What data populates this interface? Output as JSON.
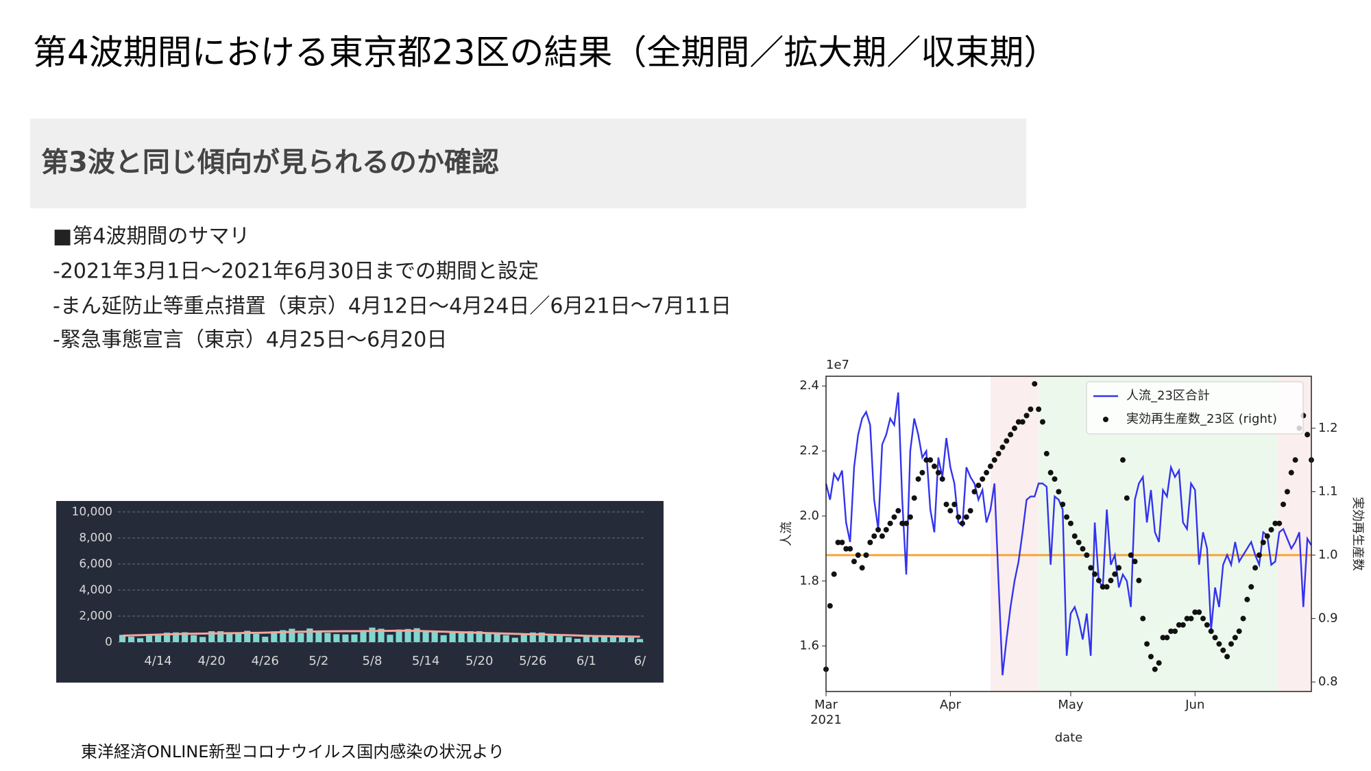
{
  "title": "第4波期間における東京都23区の結果（全期間／拡大期／収束期）",
  "subtitle": "第3波と同じ傾向が見られるのか確認",
  "summary": [
    "■第4波期間のサマリ",
    "-2021年3月1日〜2021年6月30日までの期間と設定",
    "-まん延防止等重点措置（東京）4月12日〜4月24日／6月21日〜7月11日",
    "-緊急事態宣言（東京）4月25日〜6月20日"
  ],
  "source": "東洋経済ONLINE新型コロナウイルス国内感染の状況より",
  "chart_data": [
    {
      "type": "bar",
      "background": "#262b3a",
      "grid": true,
      "categories": [
        null,
        null,
        null,
        null,
        "4/14",
        null,
        null,
        null,
        null,
        null,
        "4/20",
        null,
        null,
        null,
        null,
        null,
        "4/26",
        null,
        null,
        null,
        null,
        null,
        "5/2",
        null,
        null,
        null,
        null,
        null,
        "5/8",
        null,
        null,
        null,
        null,
        null,
        "5/14",
        null,
        null,
        null,
        null,
        null,
        "5/20",
        null,
        null,
        null,
        null,
        null,
        "5/26",
        null,
        null,
        null,
        null,
        null,
        "6/1",
        null,
        null,
        null,
        null,
        null,
        "6/"
      ],
      "series": [
        {
          "type": "bar",
          "color": "#7fd8cf",
          "values": [
            560,
            420,
            300,
            510,
            590,
            730,
            750,
            760,
            540,
            400,
            840,
            840,
            760,
            760,
            870,
            630,
            420,
            830,
            920,
            1030,
            700,
            1050,
            880,
            710,
            620,
            590,
            590,
            910,
            1120,
            1030,
            570,
            970,
            1010,
            1070,
            850,
            770,
            540,
            730,
            730,
            840,
            840,
            710,
            650,
            540,
            340,
            580,
            740,
            740,
            610,
            540,
            380,
            260,
            470,
            490,
            510,
            470,
            470,
            350,
            240
          ]
        },
        {
          "type": "line",
          "color": "#f2a7a0",
          "values": [
            500,
            520,
            540,
            560,
            580,
            600,
            620,
            640,
            650,
            660,
            670,
            680,
            690,
            700,
            710,
            720,
            730,
            750,
            770,
            790,
            800,
            810,
            820,
            830,
            835,
            840,
            845,
            850,
            855,
            860,
            870,
            880,
            875,
            860,
            840,
            820,
            800,
            780,
            760,
            740,
            720,
            700,
            680,
            660,
            640,
            620,
            600,
            590,
            570,
            550,
            530,
            510,
            490,
            470,
            460,
            450,
            440,
            430,
            420
          ]
        }
      ],
      "ylim": [
        0,
        10000
      ],
      "yticks": [
        0,
        {
          "value": 2000,
          "label": "2,000"
        },
        {
          "value": 4000,
          "label": "4,000"
        },
        {
          "value": 6000,
          "label": "6,000"
        },
        {
          "value": 8000,
          "label": "8,000"
        },
        {
          "value": 10000,
          "label": "10,000"
        }
      ]
    },
    {
      "type": "line",
      "offset_label": "1e7",
      "ylabel": "人流",
      "y2label": "実効再生産数",
      "xlabel": "date",
      "x_year_label": "2021",
      "legend": "upper right",
      "x": [
        0,
        1,
        2,
        3,
        4,
        5,
        6,
        7,
        8,
        9,
        10,
        11,
        12,
        13,
        14,
        15,
        16,
        17,
        18,
        19,
        20,
        21,
        22,
        23,
        24,
        25,
        26,
        27,
        28,
        29,
        30,
        31,
        32,
        33,
        34,
        35,
        36,
        37,
        38,
        39,
        40,
        41,
        42,
        43,
        44,
        45,
        46,
        47,
        48,
        49,
        50,
        51,
        52,
        53,
        54,
        55,
        56,
        57,
        58,
        59,
        60,
        61,
        62,
        63,
        64,
        65,
        66,
        67,
        68,
        69,
        70,
        71,
        72,
        73,
        74,
        75,
        76,
        77,
        78,
        79,
        80,
        81,
        82,
        83,
        84,
        85,
        86,
        87,
        88,
        89,
        90,
        91,
        92,
        93,
        94,
        95,
        96,
        97,
        98,
        99,
        100,
        101,
        102,
        103,
        104,
        105,
        106,
        107,
        108,
        109,
        110,
        111,
        112,
        113,
        114,
        115,
        116,
        117,
        118,
        119,
        120,
        121
      ],
      "xlim": [
        0,
        121
      ],
      "xticks": [
        {
          "value": 0,
          "label": "Mar"
        },
        {
          "value": 31,
          "label": "Apr"
        },
        {
          "value": 61,
          "label": "May"
        },
        {
          "value": 92,
          "label": "Jun"
        }
      ],
      "ylim": [
        1.46,
        2.43
      ],
      "yticks": [
        1.6,
        1.8,
        {
          "value": 2,
          "label": "2.0"
        },
        2.2,
        2.4
      ],
      "y2lim": [
        0.785,
        1.282
      ],
      "y2ticks": [
        0.8,
        0.9,
        {
          "value": 1,
          "label": "1.0"
        },
        1.1,
        1.2
      ],
      "spans": [
        {
          "from": 41,
          "to": 53,
          "color": "#fbeeee"
        },
        {
          "from": 53,
          "to": 112.5,
          "color": "#edf8ed"
        },
        {
          "from": 112.5,
          "to": 121,
          "color": "#fbeeee"
        }
      ],
      "hline": {
        "value": 1,
        "axis": "y2",
        "color": "#f5a431"
      },
      "series": [
        {
          "name": "人流_23区合計",
          "type": "line",
          "color": "#3333ee",
          "values": [
            2.1,
            2.05,
            2.13,
            2.11,
            2.14,
            1.98,
            1.92,
            2.15,
            2.25,
            2.3,
            2.32,
            2.28,
            2.05,
            1.96,
            2.22,
            2.25,
            2.3,
            2.28,
            2.38,
            2.05,
            1.82,
            2.2,
            2.3,
            2.25,
            2.18,
            2.2,
            2.02,
            1.95,
            2.18,
            2.12,
            2.24,
            2.15,
            2.1,
            1.98,
            1.97,
            2.15,
            2.12,
            2.1,
            2.05,
            2.08,
            1.98,
            2.02,
            2.1,
            1.8,
            1.51,
            1.62,
            1.72,
            1.8,
            1.86,
            1.95,
            2.05,
            2.06,
            2.06,
            2.1,
            2.1,
            2.09,
            1.85,
            2.06,
            2.05,
            2.02,
            1.57,
            1.7,
            1.72,
            1.68,
            1.62,
            1.7,
            1.57,
            1.98,
            1.8,
            1.78,
            2.02,
            1.85,
            1.88,
            1.78,
            1.82,
            1.8,
            1.72,
            2.05,
            2.1,
            2.12,
            1.98,
            2.08,
            1.95,
            1.92,
            2.08,
            2.06,
            2.15,
            2.12,
            2.14,
            1.98,
            1.96,
            2.1,
            2.08,
            1.85,
            1.95,
            1.9,
            1.65,
            1.78,
            1.72,
            1.85,
            1.88,
            1.85,
            1.92,
            1.86,
            1.88,
            1.9,
            1.92,
            1.88,
            1.85,
            1.95,
            1.94,
            1.85,
            1.86,
            1.95,
            1.96,
            1.93,
            1.9,
            1.92,
            1.95,
            1.72,
            1.93,
            1.91
          ]
        },
        {
          "name": "実効再生産数_23区 (right)",
          "type": "scatter",
          "axis": "y2",
          "color": "#111111",
          "values": [
            0.82,
            0.92,
            0.97,
            1.02,
            1.02,
            1.01,
            1.01,
            0.99,
            1.0,
            0.98,
            1.0,
            1.02,
            1.03,
            1.04,
            1.03,
            1.04,
            1.05,
            1.06,
            1.07,
            1.05,
            1.05,
            1.06,
            1.09,
            1.12,
            1.13,
            1.15,
            1.15,
            1.14,
            1.13,
            1.12,
            1.08,
            1.07,
            1.08,
            1.06,
            1.05,
            1.06,
            1.07,
            1.1,
            1.11,
            1.12,
            1.13,
            1.14,
            1.15,
            1.16,
            1.17,
            1.18,
            1.19,
            1.2,
            1.21,
            1.21,
            1.22,
            1.23,
            1.27,
            1.23,
            1.21,
            1.16,
            1.13,
            1.12,
            1.1,
            1.08,
            1.06,
            1.05,
            1.03,
            1.02,
            1.01,
            1.0,
            0.98,
            0.97,
            0.96,
            0.95,
            0.95,
            0.96,
            0.97,
            0.98,
            1.15,
            1.09,
            1.0,
            0.99,
            0.96,
            0.9,
            0.86,
            0.84,
            0.82,
            0.83,
            0.87,
            0.87,
            0.88,
            0.88,
            0.89,
            0.89,
            0.9,
            0.9,
            0.91,
            0.91,
            0.9,
            0.89,
            0.88,
            0.87,
            0.86,
            0.85,
            0.84,
            0.86,
            0.87,
            0.88,
            0.9,
            0.93,
            0.95,
            0.98,
            1.0,
            1.02,
            1.03,
            1.04,
            1.05,
            1.05,
            1.08,
            1.1,
            1.13,
            1.15,
            1.2,
            1.22,
            1.19,
            1.15
          ]
        }
      ]
    }
  ]
}
